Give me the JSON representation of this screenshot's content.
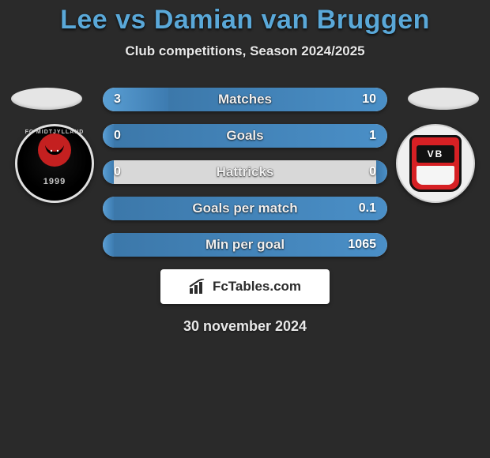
{
  "title": "Lee vs Damian van Bruggen",
  "subtitle": "Club competitions, Season 2024/2025",
  "date_text": "30 november 2024",
  "site_label": "FcTables.com",
  "colors": {
    "background": "#2a2a2a",
    "title_color": "#5aa8d8",
    "bar_track": "#d8d8d8",
    "bar_fill_left": "#5a9fd4",
    "bar_fill_right": "#4a8fc7",
    "text_light": "#e8e8e8"
  },
  "left_crest": {
    "name": "midtjylland-crest",
    "bg": "#000000",
    "ring": "#e0e0e0",
    "accent": "#c42020",
    "year": "1999",
    "arc_text": "FC MIDTJYLLAND"
  },
  "right_crest": {
    "name": "vejle-crest",
    "bg": "#efefef",
    "shield": "#d62024",
    "band": "#111111",
    "band_text": "VB"
  },
  "stats": [
    {
      "label": "Matches",
      "left_val": "3",
      "right_val": "10",
      "left_pct": 23,
      "right_pct": 77
    },
    {
      "label": "Goals",
      "left_val": "0",
      "right_val": "1",
      "left_pct": 4,
      "right_pct": 96
    },
    {
      "label": "Hattricks",
      "left_val": "0",
      "right_val": "0",
      "left_pct": 4,
      "right_pct": 4
    },
    {
      "label": "Goals per match",
      "left_val": "",
      "right_val": "0.1",
      "left_pct": 4,
      "right_pct": 96
    },
    {
      "label": "Min per goal",
      "left_val": "",
      "right_val": "1065",
      "left_pct": 4,
      "right_pct": 96
    }
  ]
}
